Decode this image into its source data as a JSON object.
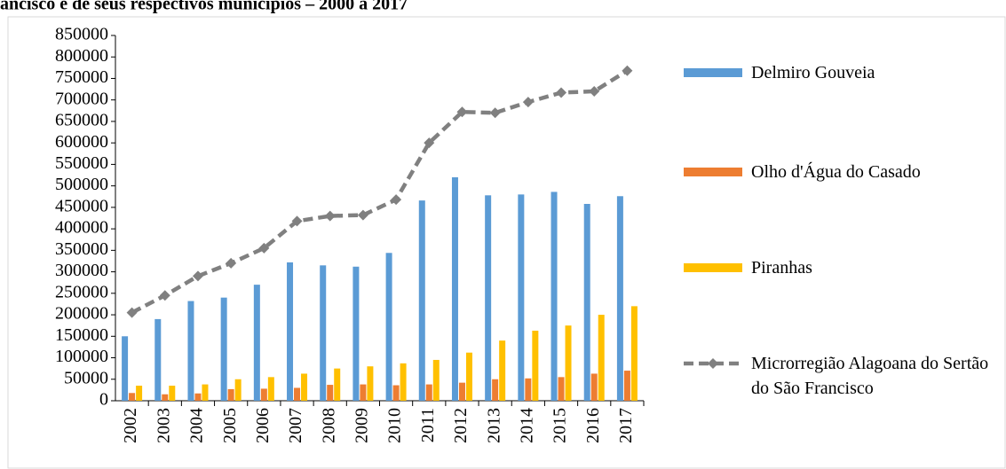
{
  "chart_data": {
    "type": "bar",
    "title": "ancisco e de seus respectivos municípios – 2000 a 2017",
    "categories": [
      "2002",
      "2003",
      "2004",
      "2005",
      "2006",
      "2007",
      "2008",
      "2009",
      "2010",
      "2011",
      "2012",
      "2013",
      "2014",
      "2015",
      "2016",
      "2017"
    ],
    "series": [
      {
        "name": "Delmiro Gouveia",
        "color": "#5b9bd5",
        "type": "bar",
        "values": [
          150000,
          190000,
          232000,
          240000,
          270000,
          322000,
          315000,
          312000,
          344000,
          466000,
          520000,
          478000,
          480000,
          486000,
          458000,
          476000
        ]
      },
      {
        "name": "Olho d'Água do Casado",
        "color": "#ed7d31",
        "type": "bar",
        "values": [
          18000,
          15000,
          17000,
          27000,
          28000,
          30000,
          37000,
          38000,
          36000,
          38000,
          42000,
          50000,
          52000,
          55000,
          63000,
          70000
        ]
      },
      {
        "name": "Piranhas",
        "color": "#ffc000",
        "type": "bar",
        "values": [
          35000,
          35000,
          38000,
          50000,
          55000,
          63000,
          75000,
          80000,
          87000,
          95000,
          112000,
          140000,
          163000,
          175000,
          200000,
          220000
        ]
      },
      {
        "name": "Microrregião Alagoana do Sertão do São Francisco",
        "color": "#808080",
        "type": "line",
        "values": [
          205000,
          245000,
          290000,
          320000,
          355000,
          418000,
          430000,
          432000,
          468000,
          600000,
          672000,
          670000,
          695000,
          717000,
          720000,
          768000
        ]
      }
    ],
    "ylim": [
      0,
      850000
    ],
    "yticks": [
      0,
      50000,
      100000,
      150000,
      200000,
      250000,
      300000,
      350000,
      400000,
      450000,
      500000,
      550000,
      600000,
      650000,
      700000,
      750000,
      800000,
      850000
    ],
    "legend": "right"
  }
}
